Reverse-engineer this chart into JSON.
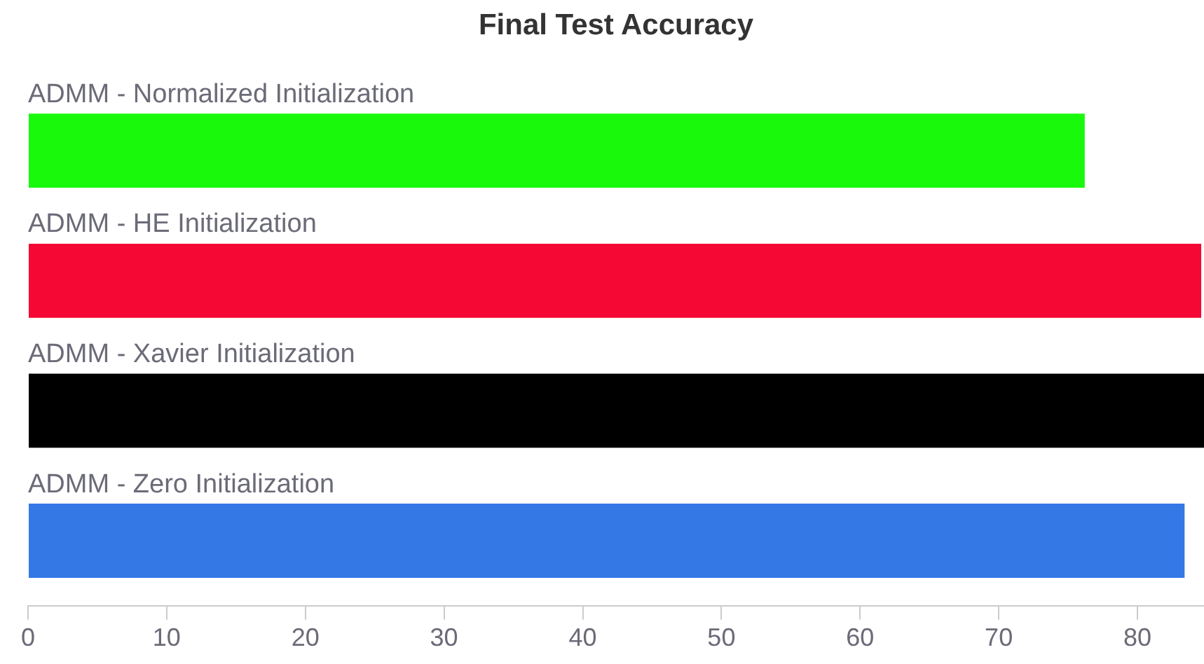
{
  "chart_data": {
    "type": "bar",
    "orientation": "horizontal",
    "title": "Final Test Accuracy",
    "categories": [
      "ADMM - Normalized Initialization",
      "ADMM - HE Initialization",
      "ADMM - Xavier Initialization",
      "ADMM - Zero Initialization"
    ],
    "values": [
      76.2,
      84.6,
      84.8,
      83.4
    ],
    "colors": [
      "#19f90c",
      "#f50834",
      "#000000",
      "#3478e6"
    ],
    "xlim": [
      0,
      84.8
    ],
    "xticks": [
      0,
      10,
      20,
      30,
      40,
      50,
      60,
      70,
      80
    ],
    "grid": false,
    "legend": false
  }
}
